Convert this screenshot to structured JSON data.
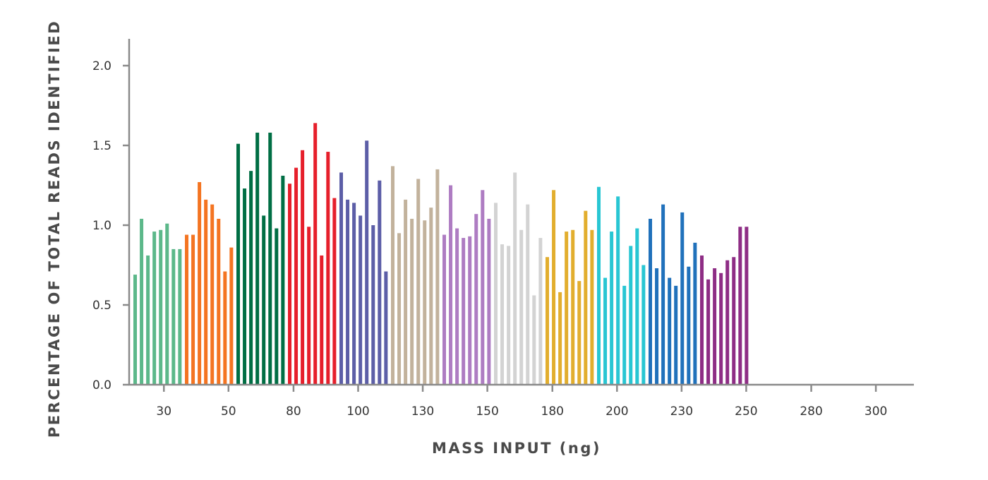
{
  "chart_data": {
    "type": "bar",
    "xlabel": "MASS INPUT (ng)",
    "ylabel": "PERCENTAGE OF TOTAL READS IDENTIFIED",
    "ylim": [
      0,
      2.2
    ],
    "yticks": [
      0.0,
      0.5,
      1.0,
      1.5,
      2.0
    ],
    "ytick_labels": [
      "0.0",
      "0.5",
      "1.0",
      "1.5",
      "2.0"
    ],
    "xtick_labels": [
      "30",
      "50",
      "80",
      "100",
      "130",
      "150",
      "180",
      "200",
      "230",
      "250",
      "280",
      "300"
    ],
    "grid": false,
    "legend": "none",
    "groups": [
      {
        "color": "#5cb88a",
        "values": [
          0.69,
          1.04,
          0.81,
          0.96,
          0.97,
          1.01,
          0.85,
          0.85
        ]
      },
      {
        "color": "#f47421",
        "values": [
          0.94,
          0.94,
          1.27,
          1.16,
          1.13,
          1.04,
          0.71,
          0.86
        ]
      },
      {
        "color": "#006e44",
        "values": [
          1.51,
          1.23,
          1.34,
          1.58,
          1.06,
          1.58,
          0.98,
          1.31
        ]
      },
      {
        "color": "#e61f2b",
        "values": [
          1.26,
          1.36,
          1.47,
          0.99,
          1.64,
          0.81,
          1.46,
          1.17
        ]
      },
      {
        "color": "#5c5ea7",
        "values": [
          1.33,
          1.16,
          1.14,
          1.06,
          1.53,
          1.0,
          1.28,
          0.71
        ]
      },
      {
        "color": "#c2b29c",
        "values": [
          1.37,
          0.95,
          1.16,
          1.04,
          1.29,
          1.03,
          1.11,
          1.35
        ]
      },
      {
        "color": "#ae7cc2",
        "values": [
          0.94,
          1.25,
          0.98,
          0.92,
          0.93,
          1.07,
          1.22,
          1.04
        ]
      },
      {
        "color": "#d3d3d3",
        "values": [
          1.14,
          0.88,
          0.87,
          1.33,
          0.97,
          1.13,
          0.56,
          0.92
        ]
      },
      {
        "color": "#e2ae2e",
        "values": [
          0.8,
          1.22,
          0.58,
          0.96,
          0.97,
          0.65,
          1.09,
          0.97
        ]
      },
      {
        "color": "#28c6d3",
        "values": [
          1.24,
          0.67,
          0.96,
          1.18,
          0.62,
          0.87,
          0.98,
          0.75
        ]
      },
      {
        "color": "#2071bb",
        "values": [
          1.04,
          0.73,
          1.13,
          0.67,
          0.62,
          1.08,
          0.74,
          0.89
        ]
      },
      {
        "color": "#8e2d85",
        "values": [
          0.81,
          0.66,
          0.73,
          0.7,
          0.78,
          0.8,
          0.99,
          0.99
        ]
      }
    ]
  }
}
